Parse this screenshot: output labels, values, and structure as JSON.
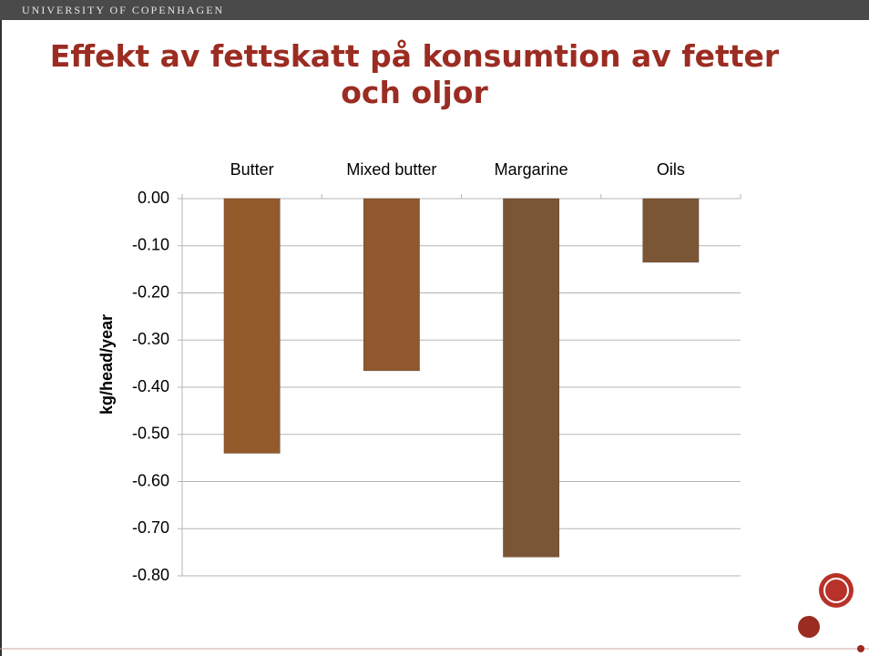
{
  "header": {
    "institution": "UNIVERSITY OF COPENHAGEN"
  },
  "chart_data": {
    "type": "bar",
    "title": "Effekt av fettskatt på konsumtion av fetter och oljor",
    "y_label": "kg/head/year",
    "categories": [
      "Butter",
      "Mixed butter",
      "Margarine",
      "Oils"
    ],
    "values": [
      -0.54,
      -0.365,
      -0.76,
      -0.135
    ],
    "colors": [
      "#935a2c",
      "#8f582e",
      "#7a5637",
      "#7a5637"
    ],
    "ylim": [
      -0.8,
      0
    ],
    "yticks": [
      {
        "value": 0,
        "label": "0.00"
      },
      {
        "value": -0.1,
        "label": "-0.10"
      },
      {
        "value": -0.2,
        "label": "-0.20"
      },
      {
        "value": -0.3,
        "label": "-0.30"
      },
      {
        "value": -0.4,
        "label": "-0.40"
      },
      {
        "value": -0.5,
        "label": "-0.50"
      },
      {
        "value": -0.6,
        "label": "-0.60"
      },
      {
        "value": -0.7,
        "label": "-0.70"
      },
      {
        "value": -0.8,
        "label": "-0.80"
      }
    ],
    "grid": true
  }
}
